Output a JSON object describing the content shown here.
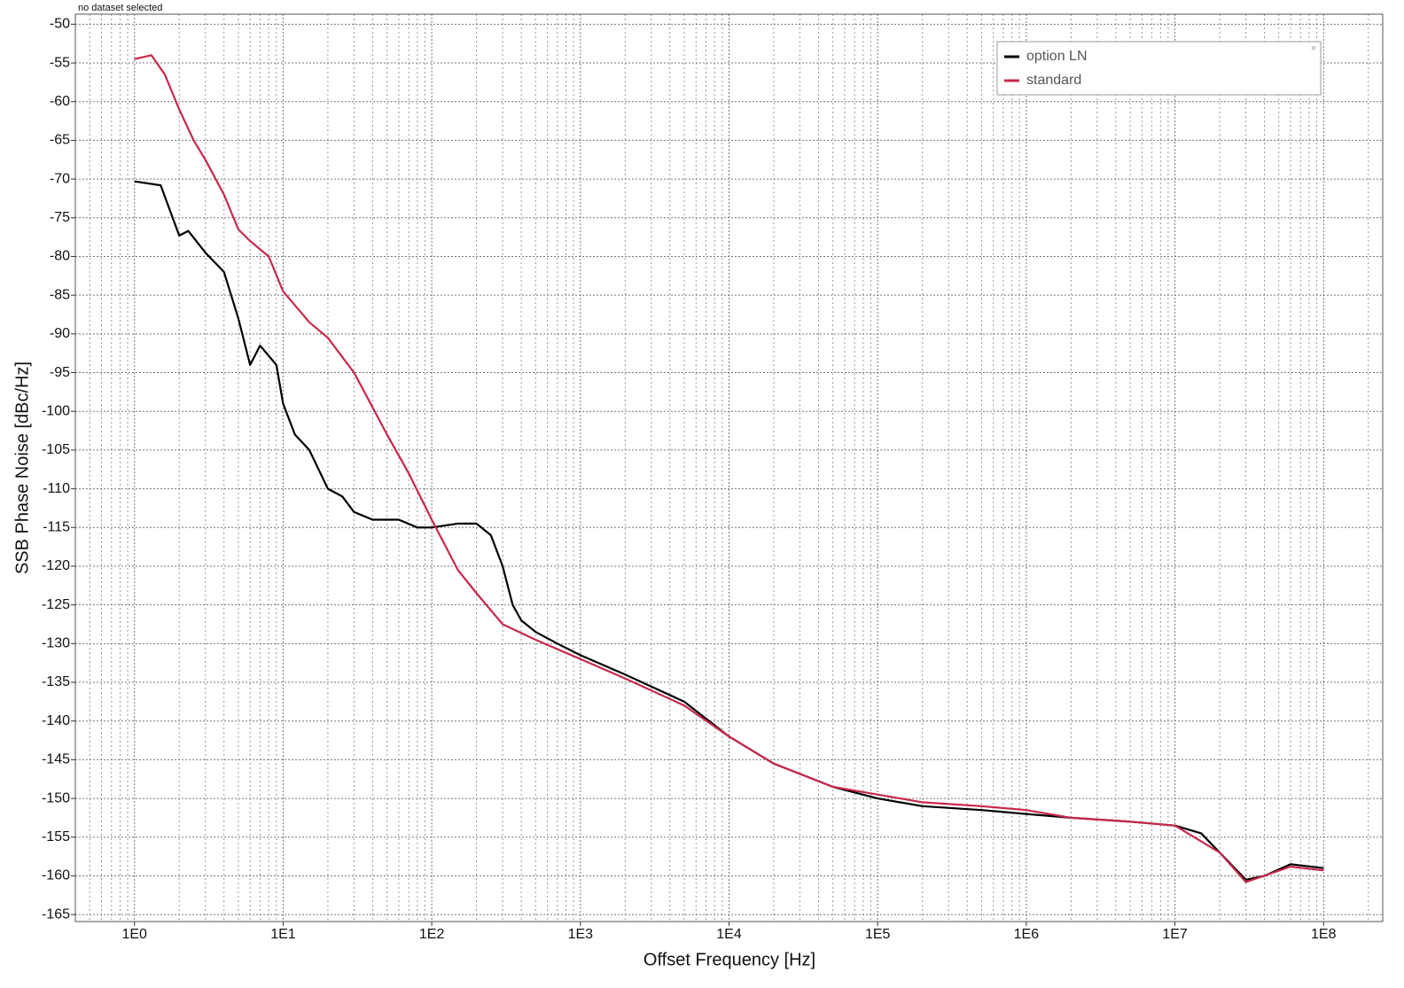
{
  "chart_data": {
    "type": "line",
    "annotation": "no dataset selected",
    "xlabel": "Offset Frequency [Hz]",
    "ylabel": "SSB Phase Noise [dBc/Hz]",
    "xscale": "log",
    "grid": true,
    "legend": "upper right",
    "xlim": [
      0.4,
      250000000
    ],
    "ylim": [
      -165.9,
      -48.7
    ],
    "xticks": [
      {
        "value": 1,
        "label": "1E0"
      },
      {
        "value": 10,
        "label": "1E1"
      },
      {
        "value": 100,
        "label": "1E2"
      },
      {
        "value": 1000,
        "label": "1E3"
      },
      {
        "value": 10000,
        "label": "1E4"
      },
      {
        "value": 100000,
        "label": "1E5"
      },
      {
        "value": 1000000,
        "label": "1E6"
      },
      {
        "value": 10000000,
        "label": "1E7"
      },
      {
        "value": 100000000,
        "label": "1E8"
      }
    ],
    "yticks": [
      -50,
      -55,
      -60,
      -65,
      -70,
      -75,
      -80,
      -85,
      -90,
      -95,
      -100,
      -105,
      -110,
      -115,
      -120,
      -125,
      -130,
      -135,
      -140,
      -145,
      -150,
      -155,
      -160,
      -165
    ],
    "series": [
      {
        "name": "option LN",
        "color": "#000000",
        "x": [
          1,
          1.5,
          2,
          2.3,
          3,
          4,
          5,
          6,
          7,
          9,
          10,
          12,
          15,
          20,
          25,
          30,
          40,
          60,
          80,
          100,
          150,
          200,
          250,
          300,
          350,
          400,
          500,
          700,
          1000,
          2000,
          5000,
          10000,
          20000,
          50000,
          100000,
          200000,
          500000,
          1000000,
          2000000,
          5000000,
          10000000,
          15000000,
          20000000,
          30000000,
          40000000,
          60000000,
          100000000
        ],
        "values": [
          -70.3,
          -70.8,
          -77.3,
          -76.7,
          -79.5,
          -82,
          -88,
          -94,
          -91.5,
          -94,
          -99,
          -103,
          -105,
          -110,
          -111,
          -113,
          -114,
          -114,
          -115,
          -115,
          -114.5,
          -114.5,
          -116,
          -120,
          -125,
          -127,
          -128.5,
          -130,
          -131.5,
          -134,
          -137.5,
          -142,
          -145.5,
          -148.5,
          -150,
          -151,
          -151.5,
          -152,
          -152.5,
          -153,
          -153.5,
          -154.5,
          -157,
          -160.5,
          -160,
          -158.5,
          -159
        ]
      },
      {
        "name": "standard",
        "color": "#c8284b",
        "x": [
          1,
          1.3,
          1.6,
          2,
          2.5,
          3,
          4,
          5,
          6,
          8,
          10,
          15,
          20,
          30,
          40,
          50,
          70,
          100,
          150,
          200,
          300,
          500,
          1000,
          2000,
          5000,
          10000,
          20000,
          50000,
          100000,
          200000,
          500000,
          1000000,
          2000000,
          5000000,
          10000000,
          20000000,
          30000000,
          60000000,
          100000000
        ],
        "values": [
          -54.5,
          -54,
          -56.5,
          -61,
          -65,
          -67.5,
          -72,
          -76.5,
          -78,
          -80,
          -84.5,
          -88.5,
          -90.5,
          -95,
          -99.5,
          -103,
          -108,
          -114,
          -120.5,
          -123.5,
          -127.5,
          -129.5,
          -132,
          -134.5,
          -138,
          -142,
          -145.5,
          -148.5,
          -149.5,
          -150.5,
          -151,
          -151.5,
          -152.5,
          -153,
          -153.5,
          -157,
          -160.8,
          -158.8,
          -159.3
        ]
      }
    ]
  }
}
